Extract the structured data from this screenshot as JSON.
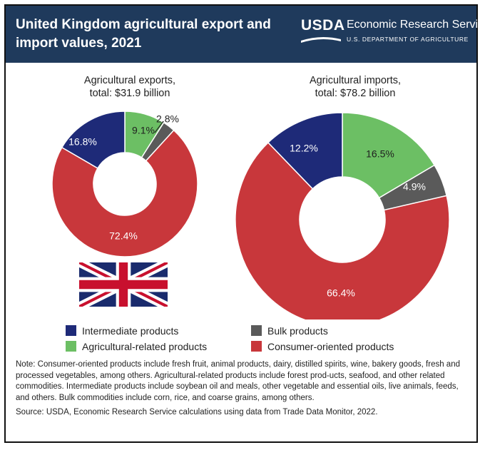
{
  "header": {
    "title": "United Kingdom agricultural export and import values, 2021",
    "logo": {
      "mark": "USDA",
      "name": "Economic Research Service",
      "subtitle": "U.S. DEPARTMENT OF AGRICULTURE"
    }
  },
  "colors": {
    "header_bg": "#1f3a5c",
    "intermediate": "#1e2a78",
    "agricultural_related": "#6cbf64",
    "bulk": "#5a5a5a",
    "consumer_oriented": "#c8373b"
  },
  "chart_data": [
    {
      "type": "pie",
      "donut": true,
      "title_line1": "Agricultural exports,",
      "title_line2": "total: $31.9 billion",
      "unit": "percent",
      "categories": [
        "Agricultural-related products",
        "Bulk products",
        "Consumer-oriented products",
        "Intermediate products"
      ],
      "values": [
        9.1,
        2.8,
        72.4,
        16.8
      ],
      "labels": [
        "9.1%",
        "2.8%",
        "72.4%",
        "16.8%"
      ]
    },
    {
      "type": "pie",
      "donut": true,
      "title_line1": "Agricultural imports,",
      "title_line2": "total: $78.2 billion",
      "unit": "percent",
      "categories": [
        "Agricultural-related products",
        "Bulk products",
        "Consumer-oriented products",
        "Intermediate products"
      ],
      "values": [
        16.5,
        4.9,
        66.4,
        12.2
      ],
      "labels": [
        "16.5%",
        "4.9%",
        "66.4%",
        "12.2%"
      ]
    }
  ],
  "legend": {
    "intermediate": "Intermediate products",
    "bulk": "Bulk products",
    "agricultural_related": "Agricultural-related products",
    "consumer_oriented": "Consumer-oriented products"
  },
  "notes": {
    "note": "Note: Consumer-oriented products include fresh fruit, animal products, dairy, distilled spirits, wine, bakery goods, fresh and processed vegetables, among others. Agricultural-related products include forest prod-ucts, seafood, and other related commodities. Intermediate products include soybean oil and meals, other vegetable and essential oils, live animals, feeds, and others. Bulk commodities include corn, rice, and coarse grains, among others.",
    "source": "Source: USDA, Economic Research Service calculations using data from Trade Data Monitor, 2022."
  }
}
